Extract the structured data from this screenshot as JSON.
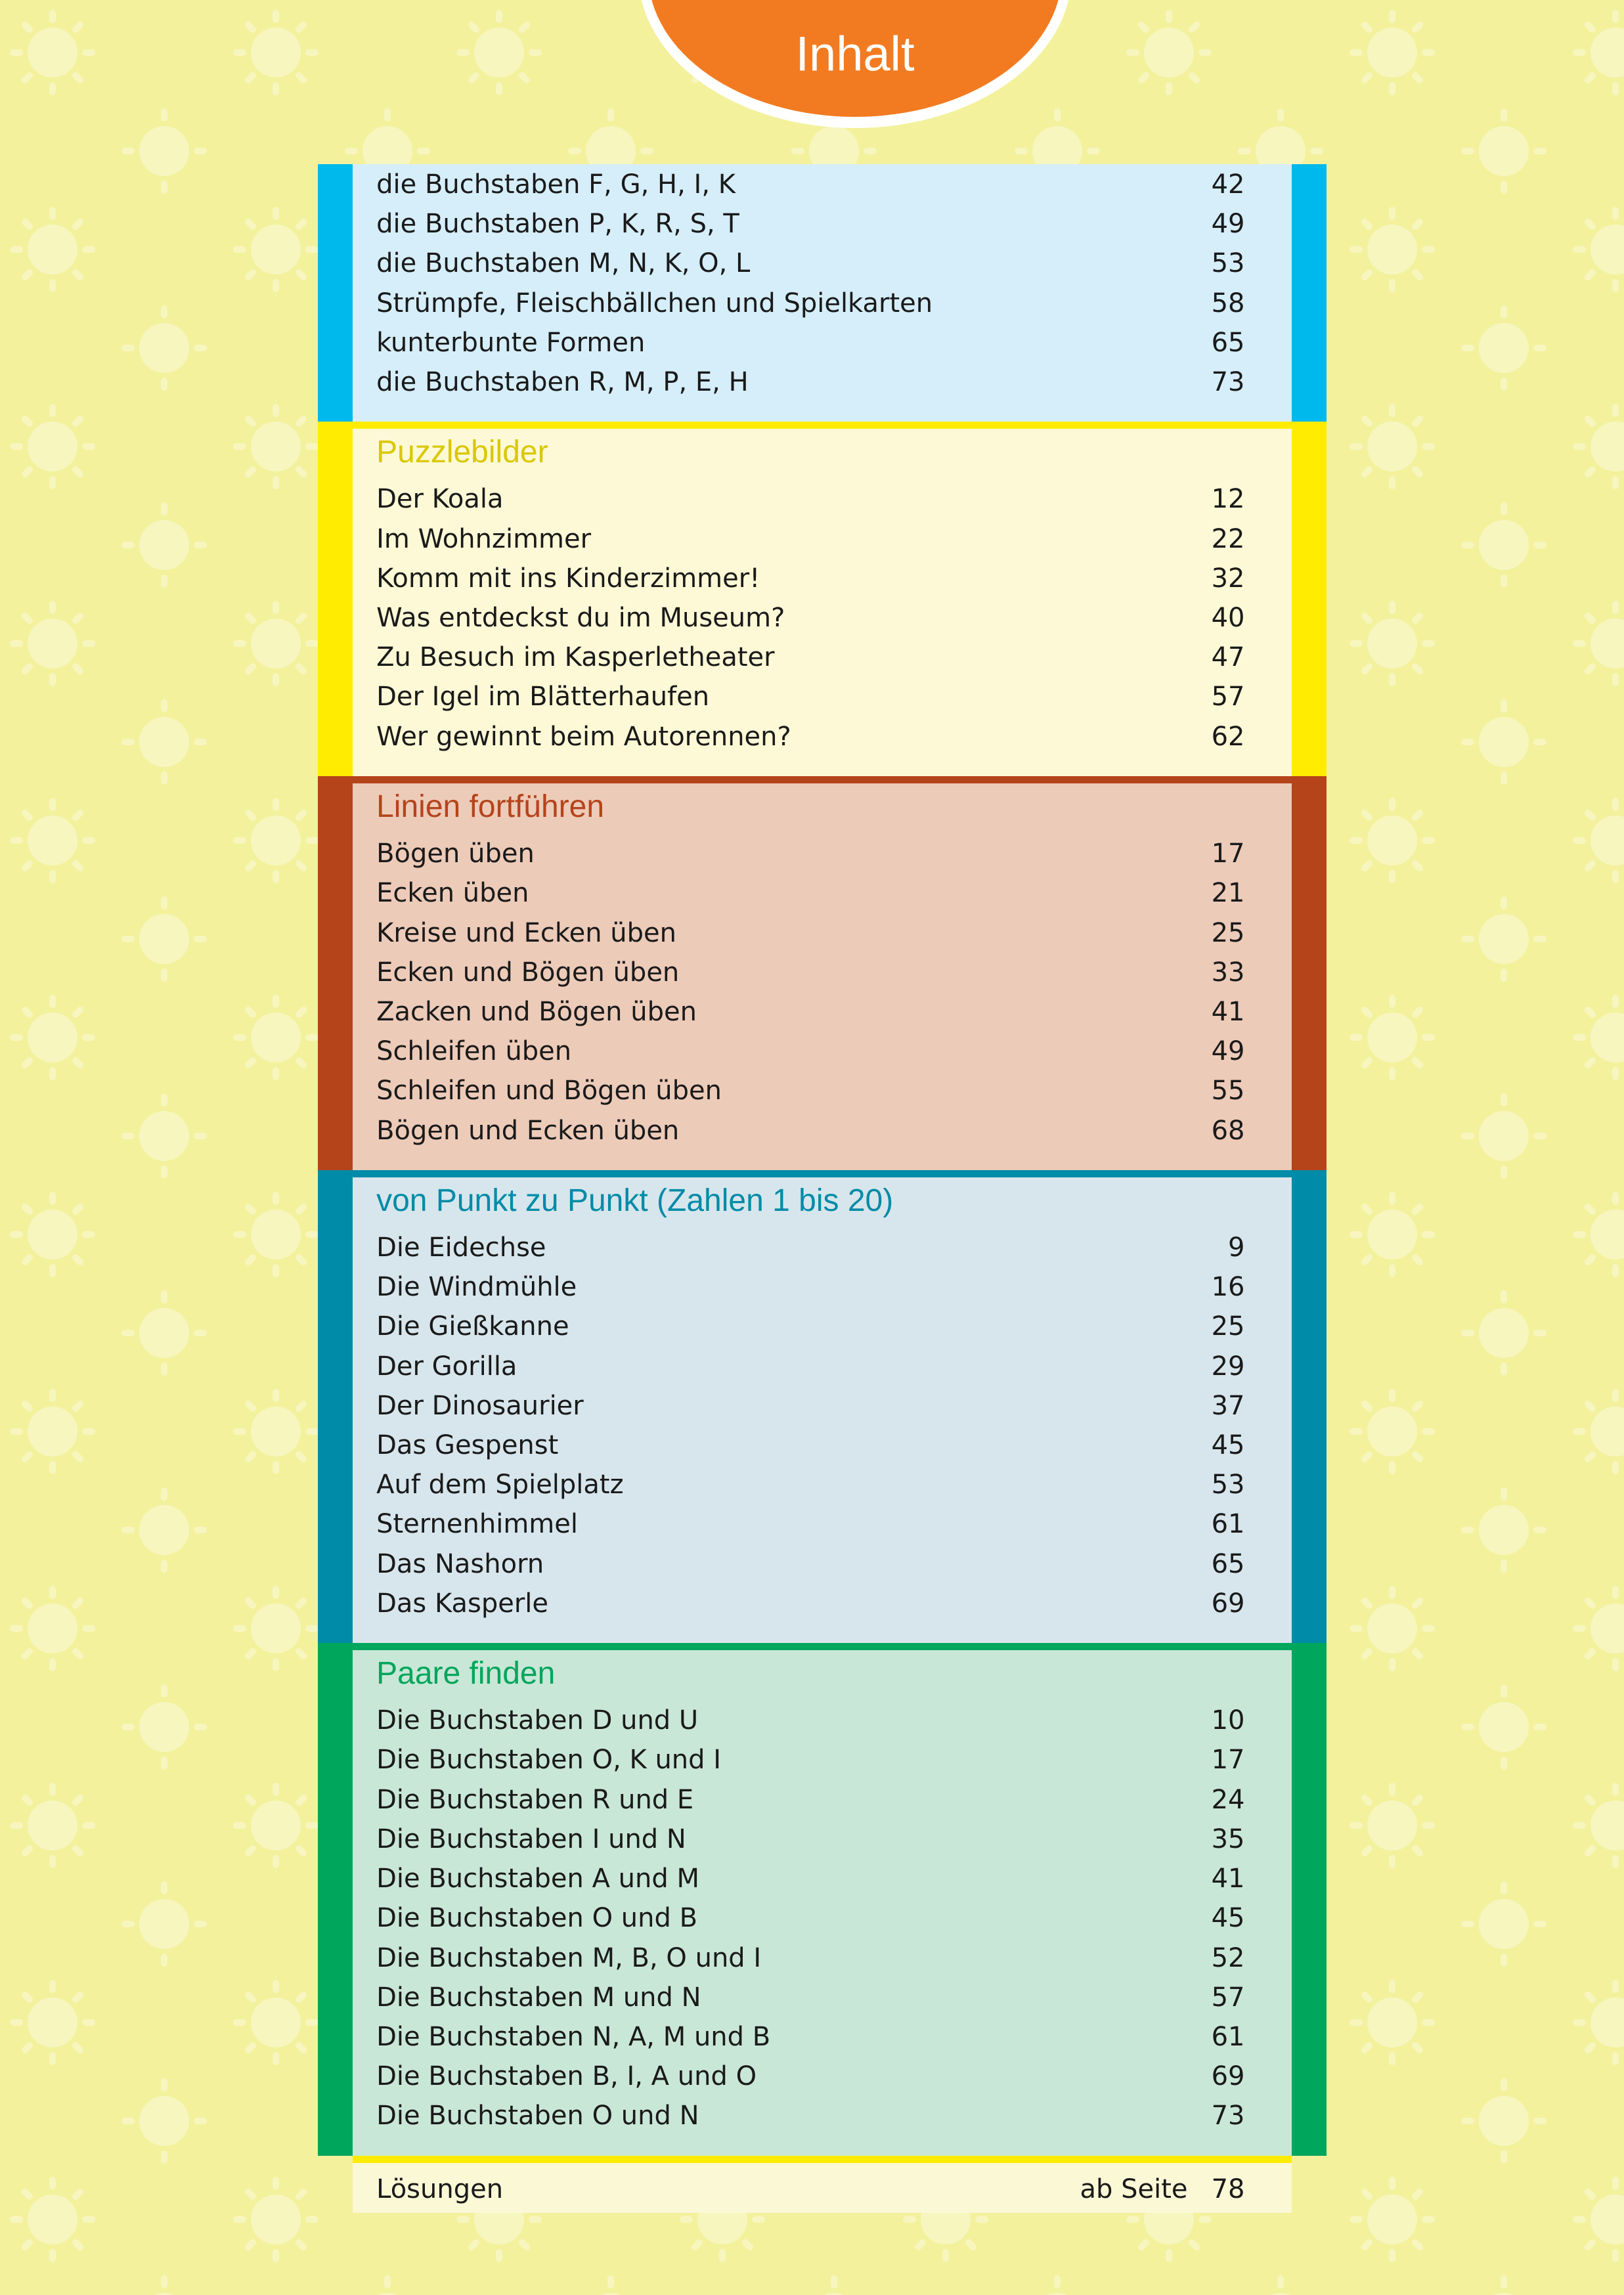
{
  "header": {
    "title": "Inhalt"
  },
  "sections": [
    {
      "items": [
        {
          "label": "die Buchstaben F, G, H, I, K",
          "page": 42
        },
        {
          "label": "die Buchstaben P, K, R, S, T",
          "page": 49
        },
        {
          "label": "die Buchstaben M, N, K, O, L",
          "page": 53
        },
        {
          "label": "Strümpfe, Fleischbällchen und Spielkarten",
          "page": 58
        },
        {
          "label": "kunterbunte Formen",
          "page": 65
        },
        {
          "label": "die Buchstaben R, M, P, E, H",
          "page": 73
        }
      ]
    },
    {
      "title": "Puzzlebilder",
      "items": [
        {
          "label": "Der Koala",
          "page": 12
        },
        {
          "label": "Im Wohnzimmer",
          "page": 22
        },
        {
          "label": "Komm mit ins Kinderzimmer!",
          "page": 32
        },
        {
          "label": "Was entdeckst du im Museum?",
          "page": 40
        },
        {
          "label": "Zu Besuch im Kasperletheater",
          "page": 47
        },
        {
          "label": "Der Igel im Blätterhaufen",
          "page": 57
        },
        {
          "label": "Wer gewinnt beim Autorennen?",
          "page": 62
        }
      ]
    },
    {
      "title": "Linien fortführen",
      "items": [
        {
          "label": "Bögen üben",
          "page": 17
        },
        {
          "label": "Ecken üben",
          "page": 21
        },
        {
          "label": "Kreise und Ecken üben",
          "page": 25
        },
        {
          "label": "Ecken und Bögen üben",
          "page": 33
        },
        {
          "label": "Zacken und Bögen üben",
          "page": 41
        },
        {
          "label": "Schleifen üben",
          "page": 49
        },
        {
          "label": "Schleifen und Bögen üben",
          "page": 55
        },
        {
          "label": "Bögen und Ecken üben",
          "page": 68
        }
      ]
    },
    {
      "title": "von Punkt zu Punkt (Zahlen 1 bis 20)",
      "items": [
        {
          "label": "Die Eidechse",
          "page": 9
        },
        {
          "label": "Die Windmühle",
          "page": 16
        },
        {
          "label": "Die Gießkanne",
          "page": 25
        },
        {
          "label": "Der Gorilla",
          "page": 29
        },
        {
          "label": "Der Dinosaurier",
          "page": 37
        },
        {
          "label": "Das Gespenst",
          "page": 45
        },
        {
          "label": "Auf dem Spielplatz",
          "page": 53
        },
        {
          "label": "Sternenhimmel",
          "page": 61
        },
        {
          "label": "Das Nashorn",
          "page": 65
        },
        {
          "label": "Das Kasperle",
          "page": 69
        }
      ]
    },
    {
      "title": "Paare finden",
      "items": [
        {
          "label": "Die Buchstaben D und U",
          "page": 10
        },
        {
          "label": "Die Buchstaben O, K und I",
          "page": 17
        },
        {
          "label": "Die Buchstaben R und E",
          "page": 24
        },
        {
          "label": "Die Buchstaben I und N",
          "page": 35
        },
        {
          "label": "Die Buchstaben A und M",
          "page": 41
        },
        {
          "label": "Die Buchstaben O und B",
          "page": 45
        },
        {
          "label": "Die Buchstaben M, B, O und I",
          "page": 52
        },
        {
          "label": "Die Buchstaben M und N",
          "page": 57
        },
        {
          "label": "Die Buchstaben N, A, M und B",
          "page": 61
        },
        {
          "label": "Die Buchstaben B, I, A und O",
          "page": 69
        },
        {
          "label": "Die Buchstaben O und N",
          "page": 73
        }
      ]
    }
  ],
  "footer": {
    "label": "Lösungen",
    "prefix": "ab Seite",
    "page": 78
  }
}
